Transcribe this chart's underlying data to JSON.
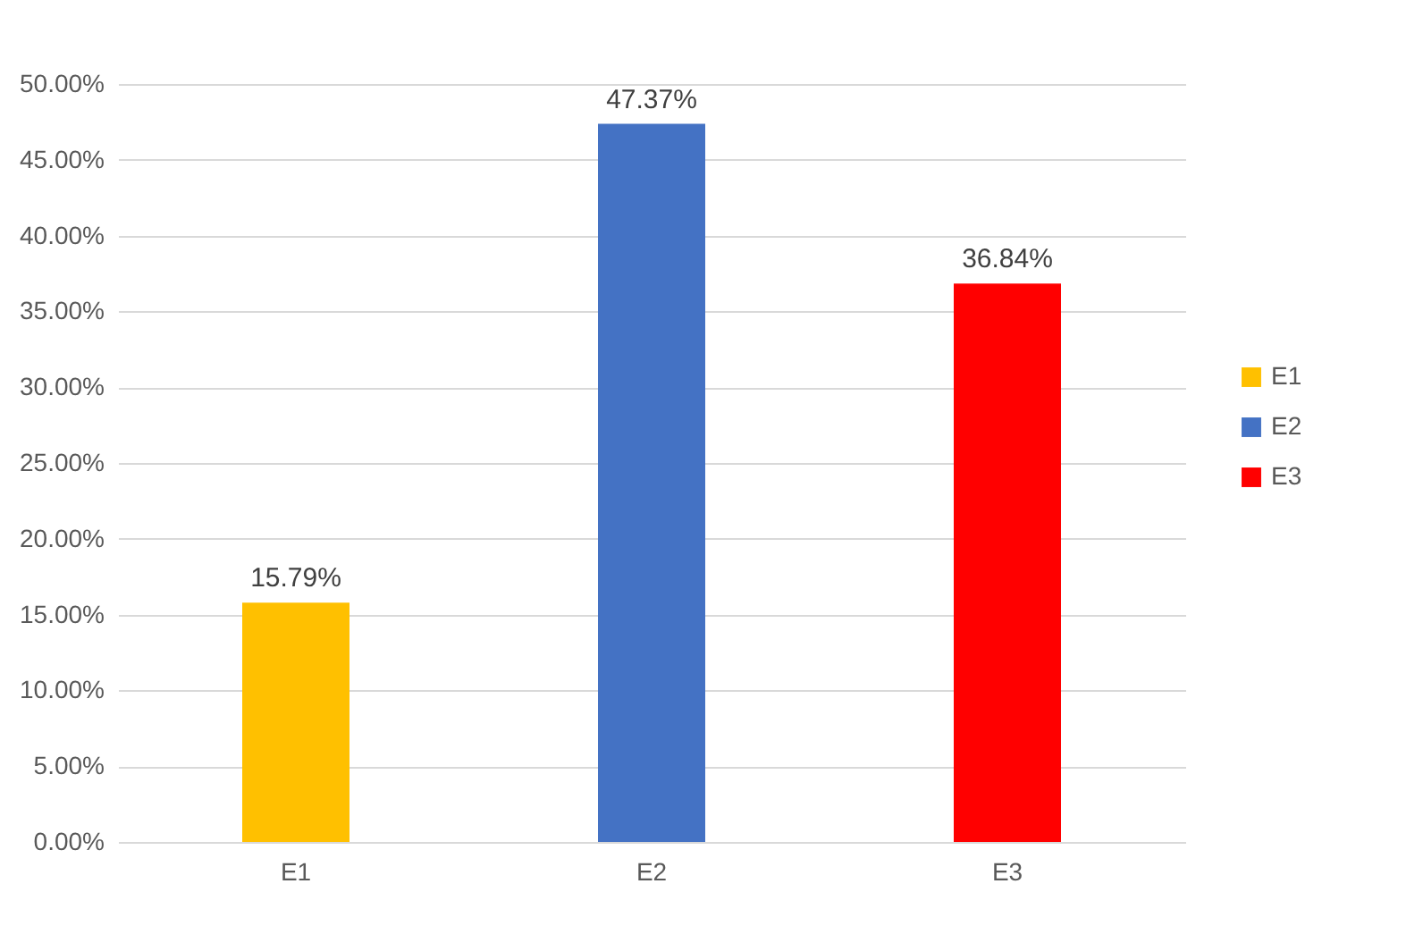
{
  "chart_data": {
    "type": "bar",
    "categories": [
      "E1",
      "E2",
      "E3"
    ],
    "series": [
      {
        "name": "E1",
        "color": "#ffc000",
        "values": [
          15.79,
          null,
          null
        ],
        "value_labels": [
          "15.79%",
          null,
          null
        ]
      },
      {
        "name": "E2",
        "color": "#4472c4",
        "values": [
          null,
          47.37,
          null
        ],
        "value_labels": [
          null,
          "47.37%",
          null
        ]
      },
      {
        "name": "E3",
        "color": "#ff0000",
        "values": [
          null,
          null,
          36.84
        ],
        "value_labels": [
          null,
          null,
          "36.84%"
        ]
      }
    ],
    "ylim": [
      0,
      50
    ],
    "yticks": [
      {
        "value": 0,
        "label": "0.00%"
      },
      {
        "value": 5,
        "label": "5.00%"
      },
      {
        "value": 10,
        "label": "10.00%"
      },
      {
        "value": 15,
        "label": "15.00%"
      },
      {
        "value": 20,
        "label": "20.00%"
      },
      {
        "value": 25,
        "label": "25.00%"
      },
      {
        "value": 30,
        "label": "30.00%"
      },
      {
        "value": 35,
        "label": "35.00%"
      },
      {
        "value": 40,
        "label": "40.00%"
      },
      {
        "value": 45,
        "label": "45.00%"
      },
      {
        "value": 50,
        "label": "50.00%"
      }
    ],
    "grid": "y",
    "legend": "right"
  }
}
